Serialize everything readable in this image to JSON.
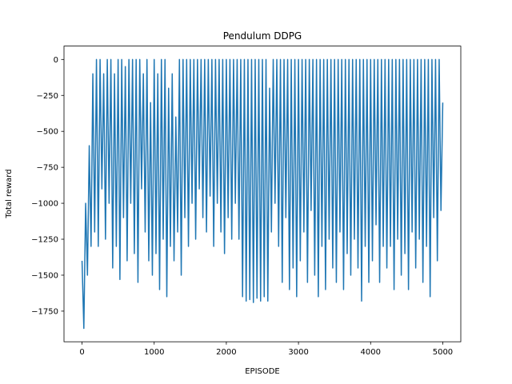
{
  "chart_data": {
    "type": "line",
    "title": "Pendulum DDPG",
    "x_label": "EPISODE",
    "y_label": "Total reward",
    "x": [
      0,
      25,
      50,
      75,
      100,
      125,
      150,
      175,
      200,
      225,
      250,
      275,
      300,
      325,
      350,
      375,
      400,
      425,
      450,
      475,
      500,
      525,
      550,
      575,
      600,
      625,
      650,
      675,
      700,
      725,
      750,
      775,
      800,
      825,
      850,
      875,
      900,
      925,
      950,
      975,
      1000,
      1025,
      1050,
      1075,
      1100,
      1125,
      1150,
      1175,
      1200,
      1225,
      1250,
      1275,
      1300,
      1325,
      1350,
      1375,
      1400,
      1425,
      1450,
      1475,
      1500,
      1525,
      1550,
      1575,
      1600,
      1625,
      1650,
      1675,
      1700,
      1725,
      1750,
      1775,
      1800,
      1825,
      1850,
      1875,
      1900,
      1925,
      1950,
      1975,
      2000,
      2025,
      2050,
      2075,
      2100,
      2125,
      2150,
      2175,
      2200,
      2225,
      2250,
      2275,
      2300,
      2325,
      2350,
      2375,
      2400,
      2425,
      2450,
      2475,
      2500,
      2525,
      2550,
      2575,
      2600,
      2625,
      2650,
      2675,
      2700,
      2725,
      2750,
      2775,
      2800,
      2825,
      2850,
      2875,
      2900,
      2925,
      2950,
      2975,
      3000,
      3025,
      3050,
      3075,
      3100,
      3125,
      3150,
      3175,
      3200,
      3225,
      3250,
      3275,
      3300,
      3325,
      3350,
      3375,
      3400,
      3425,
      3450,
      3475,
      3500,
      3525,
      3550,
      3575,
      3600,
      3625,
      3650,
      3675,
      3700,
      3725,
      3750,
      3775,
      3800,
      3825,
      3850,
      3875,
      3900,
      3925,
      3950,
      3975,
      4000,
      4025,
      4050,
      4075,
      4100,
      4125,
      4150,
      4175,
      4200,
      4225,
      4250,
      4275,
      4300,
      4325,
      4350,
      4375,
      4400,
      4425,
      4450,
      4475,
      4500,
      4525,
      4550,
      4575,
      4600,
      4625,
      4650,
      4675,
      4700,
      4725,
      4750,
      4775,
      4800,
      4825,
      4850,
      4875,
      4900,
      4925,
      4950,
      4975,
      5000
    ],
    "series": [
      {
        "color": "#1f77b4",
        "values": [
          -1400,
          -1870,
          -1000,
          -1500,
          -600,
          -1300,
          -100,
          -1200,
          0,
          -1300,
          0,
          -900,
          -100,
          -1250,
          0,
          -1000,
          0,
          -1450,
          -100,
          -1300,
          0,
          -1530,
          0,
          -1100,
          -50,
          -1400,
          0,
          -1000,
          0,
          -1350,
          0,
          -1550,
          0,
          -900,
          -100,
          -1200,
          0,
          -1400,
          -300,
          -1500,
          0,
          -1350,
          -100,
          -1600,
          0,
          -1250,
          0,
          -1650,
          -200,
          -1300,
          -100,
          -1400,
          -400,
          -1200,
          0,
          -1500,
          0,
          -1100,
          0,
          -1300,
          0,
          -1000,
          0,
          -1250,
          0,
          -900,
          0,
          -1100,
          0,
          -1200,
          0,
          -950,
          0,
          -1300,
          0,
          -1000,
          0,
          -1200,
          0,
          -1350,
          0,
          -1100,
          0,
          -1250,
          0,
          -1000,
          0,
          -1250,
          0,
          -1650,
          0,
          -1680,
          0,
          -1670,
          0,
          -1690,
          0,
          -1660,
          0,
          -1680,
          0,
          -1650,
          0,
          -1680,
          -200,
          -1200,
          0,
          -1000,
          0,
          -1300,
          0,
          -1550,
          0,
          -1100,
          0,
          -1600,
          0,
          -1450,
          0,
          -1650,
          0,
          -1400,
          0,
          -1200,
          0,
          -1550,
          0,
          -1050,
          0,
          -1500,
          0,
          -1650,
          0,
          -1300,
          0,
          -1600,
          0,
          -1250,
          0,
          -1450,
          0,
          -1550,
          0,
          -1200,
          0,
          -1600,
          0,
          -1350,
          0,
          -1500,
          0,
          -1250,
          0,
          -1450,
          0,
          -1680,
          0,
          -1300,
          0,
          -1550,
          0,
          -1400,
          0,
          -1150,
          0,
          -1550,
          0,
          -1300,
          0,
          -1450,
          0,
          -1300,
          0,
          -1600,
          0,
          -1250,
          0,
          -1500,
          0,
          -1350,
          0,
          -1600,
          0,
          -1200,
          0,
          -1450,
          0,
          -1250,
          0,
          -1550,
          0,
          -1300,
          0,
          -1650,
          0,
          -1100,
          0,
          -1400,
          0,
          -1050,
          -300
        ]
      }
    ],
    "xlim": [
      -250,
      5250
    ],
    "xticks": [
      0,
      1000,
      2000,
      3000,
      4000,
      5000
    ],
    "ylim": [
      -1963,
      93
    ],
    "yticks": [
      {
        "value": -1750,
        "label": "−1750"
      },
      {
        "value": -1500,
        "label": "−1500"
      },
      {
        "value": -1250,
        "label": "−1250"
      },
      {
        "value": -1000,
        "label": "−1000"
      },
      {
        "value": -750,
        "label": "−750"
      },
      {
        "value": -500,
        "label": "−500"
      },
      {
        "value": -250,
        "label": "−250"
      },
      0
    ],
    "grid": false
  }
}
